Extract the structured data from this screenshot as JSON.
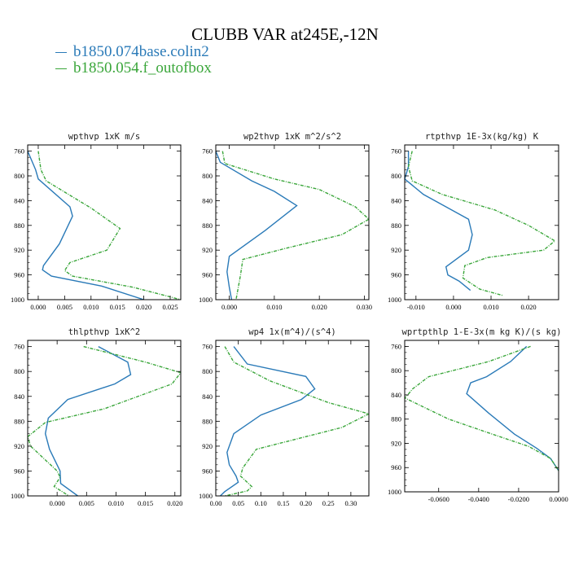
{
  "title": "CLUBB VAR at245E,-12N",
  "legend": [
    {
      "name": "b1850.074base.colin2",
      "color": "#2a7ab8"
    },
    {
      "name": "b1850.054.f_outofbox",
      "color": "#3aa63a"
    }
  ],
  "chart_data": [
    {
      "type": "line",
      "title": "wpthvp  1xK m/s",
      "xlim": [
        -0.002,
        0.027
      ],
      "ylim": [
        1000,
        750
      ],
      "xticks": [
        0.0,
        0.005,
        0.01,
        0.015,
        0.02,
        0.025
      ],
      "xtick_labels": [
        "0.000",
        "0.005",
        "0.010",
        "0.015",
        "0.020",
        "0.025"
      ],
      "yticks": [
        760,
        800,
        840,
        880,
        920,
        960,
        1000
      ],
      "series": [
        {
          "color": "#2a7ab8",
          "x": [
            -0.002,
            -0.0005,
            0.0,
            0.006,
            0.0065,
            0.004,
            0.001,
            0.0008,
            0.0025,
            0.012,
            0.02
          ],
          "y": [
            760,
            790,
            805,
            850,
            865,
            910,
            945,
            952,
            962,
            978,
            1000
          ]
        },
        {
          "color": "#3aa63a",
          "x": [
            0.0,
            0.0005,
            0.0015,
            0.01,
            0.0155,
            0.013,
            0.006,
            0.005,
            0.0065,
            0.018,
            0.027
          ],
          "y": [
            760,
            790,
            808,
            852,
            885,
            920,
            940,
            953,
            962,
            980,
            1000
          ]
        }
      ]
    },
    {
      "type": "line",
      "title": "wp2thvp  1xK m^2/s^2",
      "xlim": [
        -0.003,
        0.031
      ],
      "ylim": [
        1000,
        750
      ],
      "xticks": [
        0.0,
        0.01,
        0.02,
        0.03
      ],
      "xtick_labels": [
        "0.000",
        "0.010",
        "0.020",
        "0.030"
      ],
      "yticks": [
        760,
        800,
        840,
        880,
        920,
        960,
        1000
      ],
      "series": [
        {
          "color": "#2a7ab8",
          "x": [
            -0.003,
            -0.002,
            0.005,
            0.01,
            0.015,
            0.008,
            0.0,
            -0.0005,
            0.0,
            0.0005
          ],
          "y": [
            760,
            778,
            808,
            825,
            848,
            888,
            930,
            955,
            980,
            1000
          ]
        },
        {
          "color": "#3aa63a",
          "x": [
            -0.0015,
            -0.001,
            0.01,
            0.02,
            0.028,
            0.031,
            0.025,
            0.012,
            0.003,
            0.0025,
            0.0015
          ],
          "y": [
            760,
            780,
            805,
            822,
            850,
            870,
            895,
            918,
            935,
            960,
            1000
          ]
        }
      ]
    },
    {
      "type": "line",
      "title": "rtpthvp  1E-3x(kg/kg) K",
      "xlim": [
        -0.013,
        0.028
      ],
      "ylim": [
        1000,
        750
      ],
      "xticks": [
        -0.01,
        0.0,
        0.01,
        0.02
      ],
      "xtick_labels": [
        "-0.010",
        "0.000",
        "0.010",
        "0.020"
      ],
      "yticks": [
        760,
        800,
        840,
        880,
        920,
        960,
        1000
      ],
      "series": [
        {
          "color": "#2a7ab8",
          "x": [
            -0.012,
            -0.012,
            -0.013,
            -0.008,
            0.004,
            0.005,
            0.004,
            -0.002,
            -0.0015,
            0.0015,
            0.0045
          ],
          "y": [
            760,
            785,
            805,
            830,
            870,
            895,
            920,
            947,
            960,
            970,
            985
          ]
        },
        {
          "color": "#3aa63a",
          "x": [
            -0.011,
            -0.012,
            -0.011,
            -0.003,
            0.011,
            0.02,
            0.027,
            0.024,
            0.009,
            0.003,
            0.0025,
            0.007,
            0.013
          ],
          "y": [
            760,
            785,
            808,
            830,
            855,
            880,
            905,
            920,
            932,
            945,
            965,
            983,
            993
          ]
        }
      ]
    },
    {
      "type": "line",
      "title": "thlpthvp  1xK^2",
      "xlim": [
        -0.005,
        0.021
      ],
      "ylim": [
        1000,
        750
      ],
      "xticks": [
        0.0,
        0.005,
        0.01,
        0.015,
        0.02
      ],
      "xtick_labels": [
        "0.000",
        "0.005",
        "0.010",
        "0.015",
        "0.020"
      ],
      "yticks": [
        760,
        800,
        840,
        880,
        920,
        960,
        1000
      ],
      "series": [
        {
          "color": "#2a7ab8",
          "x": [
            0.007,
            0.012,
            0.0125,
            0.0098,
            0.0018,
            -0.0015,
            -0.002,
            -0.0013,
            0.0005,
            0.0006,
            0.0035
          ],
          "y": [
            760,
            785,
            805,
            820,
            845,
            875,
            900,
            925,
            960,
            980,
            1000
          ]
        },
        {
          "color": "#3aa63a",
          "x": [
            0.0045,
            0.015,
            0.021,
            0.0195,
            0.008,
            -0.002,
            -0.005,
            -0.0045,
            0.0,
            0.0005,
            -0.0005,
            0.002
          ],
          "y": [
            760,
            785,
            802,
            820,
            860,
            882,
            905,
            920,
            960,
            970,
            985,
            1000
          ]
        }
      ]
    },
    {
      "type": "line",
      "title": "wp4  1x(m^4)/(s^4)",
      "xlim": [
        0.0,
        0.34
      ],
      "ylim": [
        1000,
        750
      ],
      "xticks": [
        0.0,
        0.05,
        0.1,
        0.15,
        0.2,
        0.25,
        0.3
      ],
      "xtick_labels": [
        "0.00",
        "0.05",
        "0.10",
        "0.15",
        "0.20",
        "0.25",
        "0.30"
      ],
      "yticks": [
        760,
        800,
        840,
        880,
        920,
        960,
        1000
      ],
      "series": [
        {
          "color": "#2a7ab8",
          "x": [
            0.04,
            0.07,
            0.2,
            0.22,
            0.19,
            0.1,
            0.04,
            0.025,
            0.03,
            0.045,
            0.05,
            0.02,
            0.01
          ],
          "y": [
            760,
            788,
            808,
            828,
            845,
            870,
            900,
            930,
            950,
            968,
            978,
            993,
            1000
          ]
        },
        {
          "color": "#3aa63a",
          "x": [
            0.02,
            0.04,
            0.12,
            0.25,
            0.34,
            0.28,
            0.09,
            0.06,
            0.055,
            0.08,
            0.07,
            0.02
          ],
          "y": [
            760,
            785,
            815,
            850,
            868,
            890,
            925,
            955,
            968,
            985,
            992,
            1000
          ]
        }
      ]
    },
    {
      "type": "line",
      "title": "wprtpthlp  1-E-3x(m kg K)/(s kg)",
      "xlim": [
        -0.077,
        0.0
      ],
      "ylim": [
        1000,
        750
      ],
      "xticks": [
        -0.06,
        -0.04,
        -0.02,
        0.0
      ],
      "xtick_labels": [
        "-0.0600",
        "-0.0400",
        "-0.0200",
        "0.0000"
      ],
      "yticks": [
        760,
        800,
        840,
        880,
        920,
        960,
        1000
      ],
      "series": [
        {
          "color": "#2a7ab8",
          "x": [
            -0.016,
            -0.024,
            -0.036,
            -0.044,
            -0.046,
            -0.035,
            -0.022,
            -0.011,
            -0.004,
            0.0
          ],
          "y": [
            760,
            785,
            810,
            820,
            838,
            870,
            905,
            928,
            945,
            965
          ]
        },
        {
          "color": "#3aa63a",
          "x": [
            -0.014,
            -0.035,
            -0.065,
            -0.073,
            -0.075,
            -0.077,
            -0.055,
            -0.033,
            -0.015,
            -0.004,
            0.0
          ],
          "y": [
            760,
            785,
            810,
            830,
            838,
            845,
            880,
            905,
            925,
            945,
            965
          ]
        }
      ]
    }
  ]
}
